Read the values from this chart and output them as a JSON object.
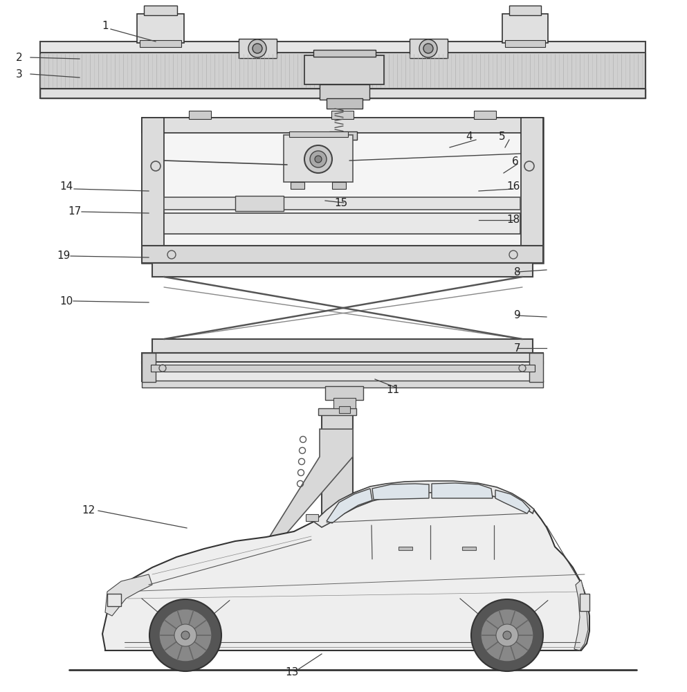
{
  "bg_color": "#ffffff",
  "line_color": "#333333",
  "label_color": "#222222",
  "label_fontsize": 11,
  "leader_lw": 0.9,
  "draw_lw": 1.0,
  "thick_lw": 1.5,
  "labels": [
    [
      "1",
      152,
      38
    ],
    [
      "2",
      28,
      83
    ],
    [
      "3",
      28,
      107
    ],
    [
      "4",
      678,
      197
    ],
    [
      "5",
      726,
      197
    ],
    [
      "6",
      745,
      233
    ],
    [
      "7",
      748,
      503
    ],
    [
      "8",
      748,
      393
    ],
    [
      "9",
      748,
      456
    ],
    [
      "10",
      96,
      435
    ],
    [
      "11",
      568,
      563
    ],
    [
      "12",
      128,
      738
    ],
    [
      "13",
      422,
      972
    ],
    [
      "14",
      96,
      270
    ],
    [
      "15",
      493,
      293
    ],
    [
      "16",
      742,
      270
    ],
    [
      "17",
      108,
      306
    ],
    [
      "18",
      742,
      318
    ],
    [
      "19",
      92,
      370
    ]
  ],
  "leader_lines": [
    [
      "1",
      160,
      42,
      225,
      60
    ],
    [
      "2",
      44,
      83,
      115,
      85
    ],
    [
      "3",
      44,
      107,
      115,
      112
    ],
    [
      "4",
      688,
      202,
      650,
      213
    ],
    [
      "5",
      736,
      202,
      730,
      213
    ],
    [
      "6",
      748,
      237,
      728,
      250
    ],
    [
      "7",
      748,
      503,
      790,
      503
    ],
    [
      "8",
      748,
      393,
      790,
      390
    ],
    [
      "9",
      748,
      456,
      790,
      458
    ],
    [
      "10",
      106,
      435,
      215,
      437
    ],
    [
      "11",
      572,
      560,
      542,
      548
    ],
    [
      "12",
      142,
      738,
      270,
      763
    ],
    [
      "13",
      430,
      968,
      465,
      945
    ],
    [
      "14",
      107,
      273,
      215,
      276
    ],
    [
      "15",
      497,
      293,
      470,
      290
    ],
    [
      "16",
      742,
      273,
      692,
      276
    ],
    [
      "17",
      118,
      306,
      215,
      308
    ],
    [
      "18",
      742,
      318,
      692,
      318
    ],
    [
      "19",
      102,
      370,
      215,
      372
    ]
  ]
}
